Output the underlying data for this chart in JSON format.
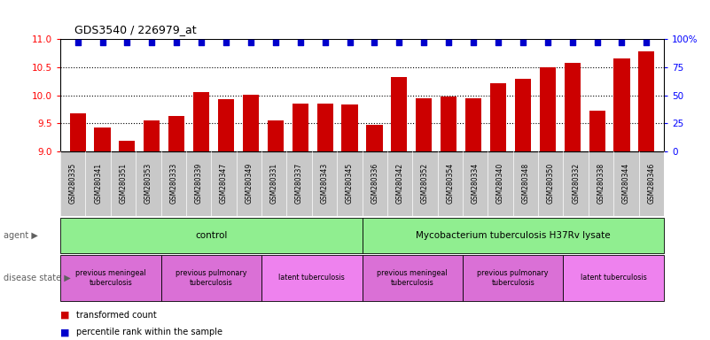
{
  "title": "GDS3540 / 226979_at",
  "samples": [
    "GSM280335",
    "GSM280341",
    "GSM280351",
    "GSM280353",
    "GSM280333",
    "GSM280339",
    "GSM280347",
    "GSM280349",
    "GSM280331",
    "GSM280337",
    "GSM280343",
    "GSM280345",
    "GSM280336",
    "GSM280342",
    "GSM280352",
    "GSM280354",
    "GSM280334",
    "GSM280340",
    "GSM280348",
    "GSM280350",
    "GSM280332",
    "GSM280338",
    "GSM280344",
    "GSM280346"
  ],
  "bar_values": [
    9.68,
    9.43,
    9.18,
    9.55,
    9.63,
    10.06,
    9.93,
    10.01,
    9.55,
    9.85,
    9.85,
    9.83,
    9.47,
    10.32,
    9.95,
    9.97,
    9.95,
    10.21,
    10.29,
    10.49,
    10.58,
    9.72,
    10.65,
    10.78
  ],
  "percentile_values": [
    97,
    97,
    97,
    97,
    97,
    97,
    97,
    97,
    97,
    97,
    97,
    97,
    97,
    97,
    97,
    97,
    97,
    97,
    97,
    97,
    97,
    97,
    97,
    97
  ],
  "bar_color": "#cc0000",
  "dot_color": "#0000cc",
  "ylim_left": [
    9.0,
    11.0
  ],
  "ylim_right": [
    0,
    100
  ],
  "yticks_left": [
    9.0,
    9.5,
    10.0,
    10.5,
    11.0
  ],
  "yticks_right": [
    0,
    25,
    50,
    75,
    100
  ],
  "dotted_lines": [
    9.5,
    10.0,
    10.5
  ],
  "agent_groups": [
    {
      "label": "control",
      "start": 0,
      "end": 11,
      "color": "#90EE90"
    },
    {
      "label": "Mycobacterium tuberculosis H37Rv lysate",
      "start": 12,
      "end": 23,
      "color": "#90EE90"
    }
  ],
  "disease_groups": [
    {
      "label": "previous meningeal\ntuberculosis",
      "start": 0,
      "end": 3,
      "color": "#DA70D6"
    },
    {
      "label": "previous pulmonary\ntuberculosis",
      "start": 4,
      "end": 7,
      "color": "#DA70D6"
    },
    {
      "label": "latent tuberculosis",
      "start": 8,
      "end": 11,
      "color": "#EE82EE"
    },
    {
      "label": "previous meningeal\ntuberculosis",
      "start": 12,
      "end": 15,
      "color": "#DA70D6"
    },
    {
      "label": "previous pulmonary\ntuberculosis",
      "start": 16,
      "end": 19,
      "color": "#DA70D6"
    },
    {
      "label": "latent tuberculosis",
      "start": 20,
      "end": 23,
      "color": "#EE82EE"
    }
  ],
  "legend_bar_label": "transformed count",
  "legend_dot_label": "percentile rank within the sample",
  "agent_label": "agent",
  "disease_label": "disease state",
  "xtick_bg_color": "#c8c8c8",
  "left_label_color": "#808080"
}
